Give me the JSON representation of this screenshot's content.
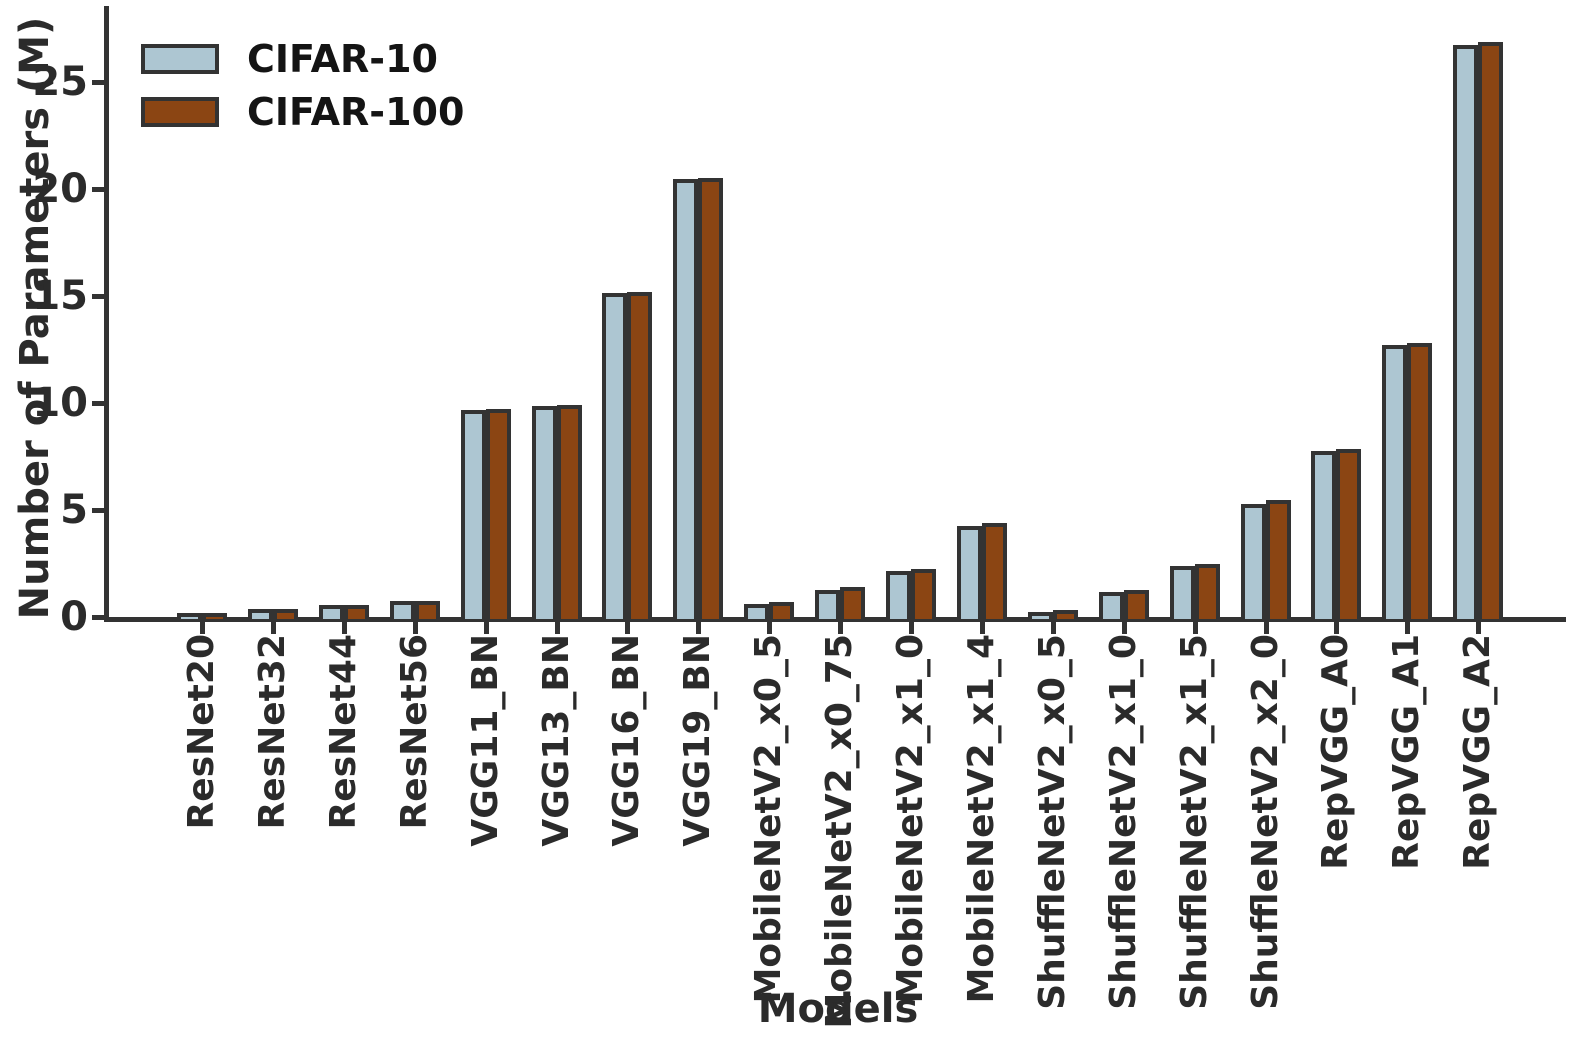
{
  "chart_data": {
    "type": "bar",
    "title": "",
    "xlabel": "Models",
    "ylabel": "Number of Parameters (M)",
    "categories": [
      "ResNet20",
      "ResNet32",
      "ResNet44",
      "ResNet56",
      "VGG11_BN",
      "VGG13_BN",
      "VGG16_BN",
      "VGG19_BN",
      "MobileNetV2_x0_5",
      "MobileNetV2_x0_75",
      "MobileNetV2_x1_0",
      "MobileNetV2_x1_4",
      "ShuffleNetV2_x0_5",
      "ShuffleNetV2_x1_0",
      "ShuffleNetV2_x1_5",
      "ShuffleNetV2_x2_0",
      "RepVGG_A0",
      "RepVGG_A1",
      "RepVGG_A2"
    ],
    "series": [
      {
        "name": "CIFAR-10",
        "color": "#adc6d2",
        "values": [
          0.27,
          0.47,
          0.66,
          0.86,
          9.76,
          9.94,
          15.25,
          20.57,
          0.7,
          1.37,
          2.24,
          4.33,
          0.35,
          1.26,
          2.49,
          5.37,
          7.84,
          12.79,
          26.82
        ]
      },
      {
        "name": "CIFAR-100",
        "color": "#8b4513",
        "values": [
          0.28,
          0.47,
          0.67,
          0.86,
          9.8,
          9.99,
          15.3,
          20.61,
          0.81,
          1.48,
          2.35,
          4.5,
          0.44,
          1.36,
          2.58,
          5.55,
          7.96,
          12.9,
          26.94
        ]
      }
    ],
    "yticks": [
      0,
      5,
      10,
      15,
      20,
      25
    ],
    "ylim": [
      0,
      28.6
    ],
    "grid": false,
    "legend_position": "upper left",
    "bar_edge_color": "#333333",
    "axis_color": "#333333",
    "text_color": "#2b2b2b"
  }
}
